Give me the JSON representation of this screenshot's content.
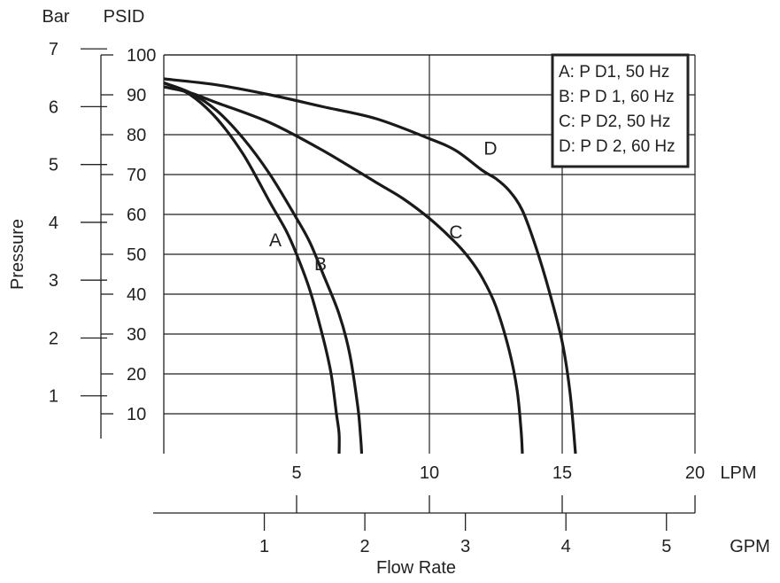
{
  "chart_data": {
    "type": "line",
    "title": "",
    "xlabel": "Flow Rate",
    "ylabel": "Pressure",
    "grid": true,
    "legend_position": "top-right",
    "x_axes": {
      "primary": {
        "unit": "LPM",
        "range": [
          0,
          20
        ],
        "ticks": [
          5,
          10,
          15,
          20
        ]
      },
      "secondary": {
        "unit": "GPM",
        "range": [
          0,
          5.283
        ],
        "ticks": [
          1,
          2,
          3,
          4,
          5
        ]
      }
    },
    "y_axes": {
      "primary": {
        "unit": "PSID",
        "range": [
          0,
          100
        ],
        "ticks": [
          10,
          20,
          30,
          40,
          50,
          60,
          70,
          80,
          90,
          100
        ]
      },
      "secondary": {
        "unit": "Bar",
        "range": [
          0,
          7
        ],
        "ticks": [
          1,
          2,
          3,
          4,
          5,
          6,
          7
        ]
      }
    },
    "legend": [
      "A: P D1, 50 Hz",
      "B: P D 1, 60 Hz",
      "C: P D2, 50 Hz",
      "D: P D 2, 60 Hz"
    ],
    "series": [
      {
        "name": "A",
        "label": "A",
        "x": [
          0,
          1,
          2,
          3,
          4,
          4.6,
          5,
          5.5,
          6,
          6.3,
          6.5,
          6.6,
          6.6
        ],
        "y": [
          93,
          90,
          84,
          75,
          63,
          56,
          50,
          41,
          29,
          20,
          10,
          5,
          0
        ]
      },
      {
        "name": "B",
        "label": "B",
        "x": [
          0,
          1,
          2,
          3,
          4,
          5,
          5.5,
          6,
          6.6,
          7,
          7.3,
          7.4,
          7.45
        ],
        "y": [
          93,
          90.5,
          86,
          79,
          70,
          59,
          53,
          45,
          35,
          25,
          12,
          5,
          0
        ]
      },
      {
        "name": "C",
        "label": "C",
        "x": [
          0,
          1,
          2,
          4,
          6,
          8,
          9,
          10,
          10.9,
          11.5,
          12,
          12.5,
          13,
          13.3,
          13.45,
          13.5
        ],
        "y": [
          92,
          90.5,
          88,
          83,
          76,
          68,
          64,
          59,
          53.5,
          49,
          44,
          37,
          26,
          16,
          6,
          0
        ]
      },
      {
        "name": "D",
        "label": "D",
        "x": [
          0,
          2,
          4,
          6,
          8,
          10,
          11,
          12,
          12.5,
          13,
          13.5,
          14,
          14.5,
          15,
          15.3,
          15.5
        ],
        "y": [
          94,
          92.5,
          90,
          87,
          84,
          79,
          76,
          71,
          69,
          66,
          61,
          52,
          41,
          28,
          15,
          0
        ]
      }
    ],
    "curve_labels": [
      {
        "series": "A",
        "text": "A",
        "at_x": 4.2,
        "at_y": 52
      },
      {
        "series": "B",
        "text": "B",
        "at_x": 5.9,
        "at_y": 46
      },
      {
        "series": "C",
        "text": "C",
        "at_x": 11.0,
        "at_y": 54
      },
      {
        "series": "D",
        "text": "D",
        "at_x": 12.3,
        "at_y": 75
      }
    ]
  }
}
